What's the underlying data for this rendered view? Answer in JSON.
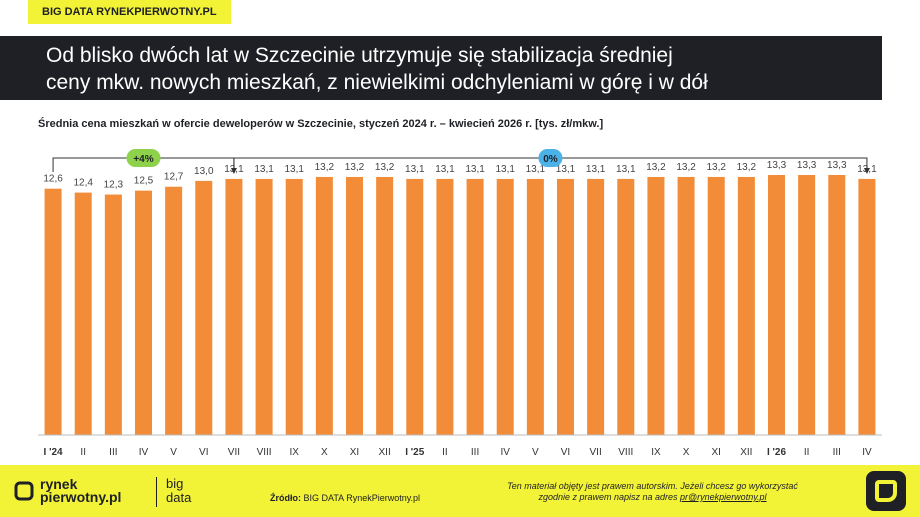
{
  "header": {
    "brand": "BIG DATA RYNEKPIERWOTNY.PL",
    "title_line1": "Od blisko dwóch lat w Szczecinie utrzymuje się stabilizacja średniej",
    "title_line2": "ceny mkw. nowych mieszkań, z niewielkimi odchyleniami w górę i w dół"
  },
  "colors": {
    "bar": "#f28c38",
    "accent_yellow": "#f2f236",
    "dark": "#1e2026",
    "badge_green": "#8ed14a",
    "badge_blue": "#4ab2e8"
  },
  "chart_data": {
    "type": "bar",
    "title": "Średnia cena mieszkań w ofercie deweloperów w Szczecinie, styczeń 2024 r. – kwiecień 2026 r. [tys. zł/mkw.]",
    "categories": [
      "I '24",
      "II",
      "III",
      "IV",
      "V",
      "VI",
      "VII",
      "VIII",
      "IX",
      "X",
      "XI",
      "XII",
      "I '25",
      "II",
      "III",
      "IV",
      "V",
      "VI",
      "VII",
      "VIII",
      "IX",
      "X",
      "XI",
      "XII",
      "I '26",
      "II",
      "III",
      "IV"
    ],
    "bold_categories": [
      0,
      12,
      24
    ],
    "values": [
      12.6,
      12.4,
      12.3,
      12.5,
      12.7,
      13.0,
      13.1,
      13.1,
      13.1,
      13.2,
      13.2,
      13.2,
      13.1,
      13.1,
      13.1,
      13.1,
      13.1,
      13.1,
      13.1,
      13.1,
      13.2,
      13.2,
      13.2,
      13.2,
      13.3,
      13.3,
      13.3,
      13.1
    ],
    "value_labels": [
      "12,6",
      "12,4",
      "12,3",
      "12,5",
      "12,7",
      "13,0",
      "13,1",
      "13,1",
      "13,1",
      "13,2",
      "13,2",
      "13,2",
      "13,1",
      "13,1",
      "13,1",
      "13,1",
      "13,1",
      "13,1",
      "13,1",
      "13,1",
      "13,2",
      "13,2",
      "13,2",
      "13,2",
      "13,3",
      "13,3",
      "13,3",
      "13,1"
    ],
    "annotations": [
      {
        "label": "+4%",
        "from": 0,
        "to": 6,
        "color": "badge_green"
      },
      {
        "label": "0%",
        "from": 6,
        "to": 27,
        "color": "badge_blue"
      }
    ],
    "grid": false,
    "legend": "none"
  },
  "footer": {
    "logo_rynek": "rynek",
    "logo_pierwotny": "pierwotny.pl",
    "logo_big": "big",
    "logo_data": "data",
    "source_label": "Źródło:",
    "source_value": "BIG DATA RynekPierwotny.pl",
    "copyright_line1": "Ten materiał objęty jest prawem autorskim. Jeżeli chcesz go wykorzystać",
    "copyright_line2": "zgodnie z prawem napisz na adres",
    "copyright_email": "pr@rynekpierwotny.pl"
  }
}
